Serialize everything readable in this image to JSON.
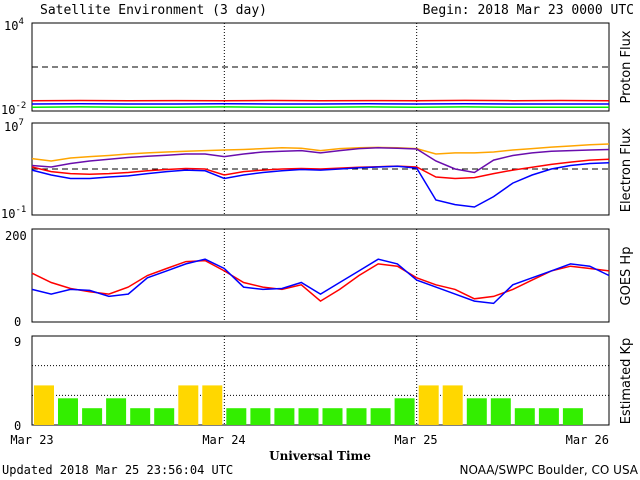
{
  "header": {
    "title": "Satellite Environment (3 day)",
    "begin": "Begin:  2018 Mar 23 0000 UTC"
  },
  "footer": {
    "updated": "Updated 2018 Mar 25 23:56:04 UTC",
    "credit": "NOAA/SWPC Boulder, CO USA"
  },
  "colors": {
    "red": "#ff0000",
    "blue": "#0000ff",
    "green": "#00ee00",
    "orange": "#ffa500",
    "purple": "#6a0dad",
    "kp_green": "#33ee00",
    "kp_yellow": "#ffd700"
  },
  "chart_data": [
    {
      "type": "line",
      "panel": "proton",
      "ylabel": "Proton Flux",
      "yscale": "log",
      "ylim": [
        0.01,
        10000
      ],
      "ytick_labels": [
        "10^4",
        "10^-2"
      ],
      "threshold": 10,
      "x": [
        0,
        0.25,
        0.5,
        0.75,
        1.0,
        1.25,
        1.5,
        1.75,
        2.0,
        2.25,
        2.5,
        2.75,
        3.0
      ],
      "series": [
        {
          "color": "red",
          "values": [
            0.05,
            0.052,
            0.05,
            0.051,
            0.05,
            0.052,
            0.05,
            0.051,
            0.05,
            0.053,
            0.05,
            0.052,
            0.05
          ]
        },
        {
          "color": "blue",
          "values": [
            0.03,
            0.031,
            0.03,
            0.03,
            0.031,
            0.03,
            0.03,
            0.031,
            0.03,
            0.031,
            0.03,
            0.03,
            0.03
          ]
        },
        {
          "color": "green",
          "values": [
            0.018,
            0.019,
            0.018,
            0.018,
            0.019,
            0.018,
            0.018,
            0.019,
            0.018,
            0.019,
            0.018,
            0.018,
            0.018
          ]
        }
      ]
    },
    {
      "type": "line",
      "panel": "electron",
      "ylabel": "Electron Flux",
      "yscale": "log",
      "ylim": [
        0.1,
        10000000
      ],
      "ytick_labels": [
        "10^7",
        "10^-1"
      ],
      "threshold": 1000,
      "x": [
        0,
        0.1,
        0.2,
        0.3,
        0.4,
        0.5,
        0.6,
        0.7,
        0.8,
        0.9,
        1.0,
        1.1,
        1.2,
        1.3,
        1.4,
        1.5,
        1.6,
        1.7,
        1.8,
        1.9,
        2.0,
        2.1,
        2.2,
        2.3,
        2.4,
        2.5,
        2.6,
        2.7,
        2.8,
        2.9,
        3.0
      ],
      "series": [
        {
          "color": "orange",
          "values": [
            8000,
            5000,
            9000,
            12000,
            15000,
            20000,
            25000,
            30000,
            35000,
            40000,
            45000,
            50000,
            60000,
            70000,
            65000,
            40000,
            60000,
            70000,
            75000,
            70000,
            60000,
            20000,
            25000,
            25000,
            30000,
            45000,
            60000,
            80000,
            100000,
            130000,
            150000
          ]
        },
        {
          "color": "purple",
          "values": [
            2000,
            1500,
            3000,
            5000,
            7000,
            10000,
            13000,
            16000,
            20000,
            20000,
            12000,
            20000,
            30000,
            35000,
            40000,
            25000,
            40000,
            60000,
            70000,
            65000,
            55000,
            5000,
            1000,
            500,
            6000,
            15000,
            25000,
            35000,
            40000,
            45000,
            50000
          ]
        },
        {
          "color": "red",
          "values": [
            1500,
            600,
            400,
            350,
            400,
            500,
            700,
            900,
            1100,
            1000,
            300,
            600,
            800,
            1000,
            1100,
            1000,
            1200,
            1400,
            1600,
            1800,
            1500,
            200,
            150,
            180,
            400,
            800,
            1400,
            2500,
            4000,
            6000,
            7000
          ]
        },
        {
          "color": "blue",
          "values": [
            800,
            300,
            150,
            150,
            200,
            250,
            400,
            600,
            800,
            700,
            150,
            300,
            500,
            700,
            900,
            800,
            1000,
            1300,
            1500,
            1700,
            1200,
            2,
            0.8,
            0.5,
            4,
            60,
            300,
            1000,
            2000,
            3000,
            3500
          ]
        }
      ]
    },
    {
      "type": "line",
      "panel": "goes_hp",
      "ylabel": "GOES Hp",
      "ylim": [
        0,
        200
      ],
      "ytick_labels": [
        "200",
        "0"
      ],
      "x": [
        0,
        0.1,
        0.2,
        0.3,
        0.4,
        0.5,
        0.6,
        0.7,
        0.8,
        0.9,
        1.0,
        1.1,
        1.2,
        1.3,
        1.4,
        1.5,
        1.6,
        1.7,
        1.8,
        1.9,
        2.0,
        2.1,
        2.2,
        2.3,
        2.4,
        2.5,
        2.6,
        2.7,
        2.8,
        2.9,
        3.0
      ],
      "series": [
        {
          "color": "red",
          "values": [
            105,
            85,
            72,
            65,
            60,
            75,
            100,
            115,
            130,
            132,
            110,
            85,
            75,
            70,
            80,
            45,
            70,
            100,
            125,
            120,
            95,
            80,
            70,
            50,
            55,
            70,
            90,
            110,
            120,
            115,
            110
          ]
        },
        {
          "color": "blue",
          "values": [
            70,
            60,
            70,
            68,
            55,
            60,
            95,
            110,
            125,
            135,
            115,
            75,
            70,
            72,
            85,
            60,
            85,
            110,
            135,
            125,
            90,
            75,
            60,
            45,
            40,
            80,
            95,
            110,
            125,
            120,
            100
          ]
        }
      ]
    },
    {
      "type": "bar",
      "panel": "kp",
      "ylabel": "Estimated Kp",
      "ylim": [
        0,
        9
      ],
      "ytick_labels": [
        "9",
        "0"
      ],
      "x_labels": [
        "Mar 23",
        "Mar 24",
        "Mar 25",
        "Mar 26"
      ],
      "xlabel": "Universal Time",
      "values": [
        4,
        2.7,
        1.7,
        2.7,
        1.7,
        1.7,
        4,
        4,
        1.7,
        1.7,
        1.7,
        1.7,
        1.7,
        1.7,
        1.7,
        2.7,
        4,
        4,
        2.7,
        2.7,
        1.7,
        1.7,
        1.7,
        0
      ],
      "bar_colors": [
        "kp_yellow",
        "kp_green",
        "kp_green",
        "kp_green",
        "kp_green",
        "kp_green",
        "kp_yellow",
        "kp_yellow",
        "kp_green",
        "kp_green",
        "kp_green",
        "kp_green",
        "kp_green",
        "kp_green",
        "kp_green",
        "kp_green",
        "kp_yellow",
        "kp_yellow",
        "kp_green",
        "kp_green",
        "kp_green",
        "kp_green",
        "kp_green",
        "kp_green"
      ]
    }
  ]
}
